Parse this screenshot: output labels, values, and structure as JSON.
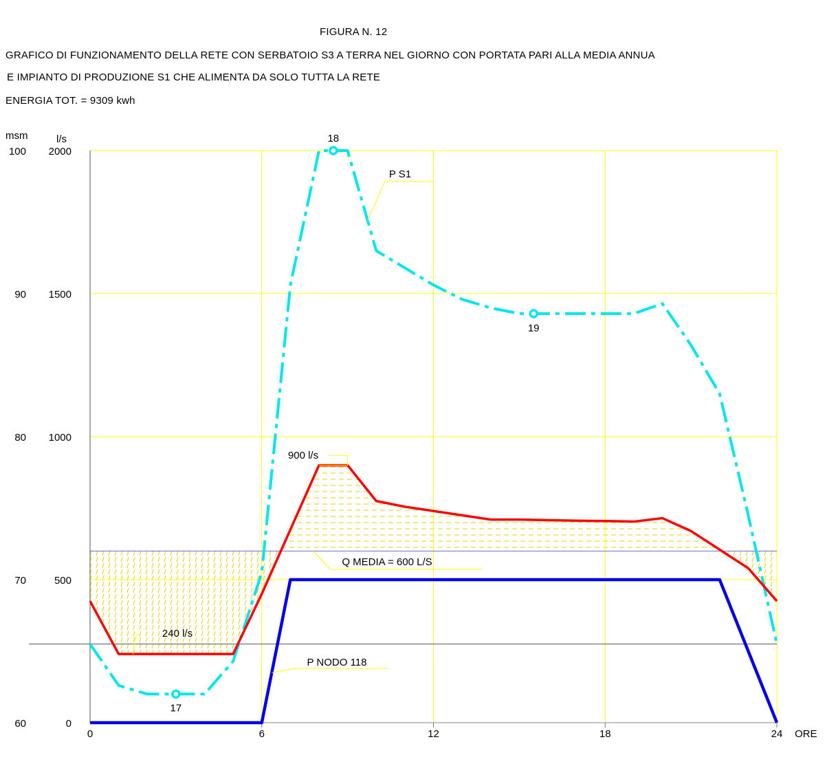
{
  "header": {
    "figure": "FIGURA N. 12",
    "line1": "GRAFICO DI FUNZIONAMENTO DELLA RETE CON SERBATOIO S3 A TERRA NEL GIORNO CON PORTATA PARI ALLA MEDIA ANNUA",
    "line2": "E IMPIANTO DI PRODUZIONE S1 CHE ALIMENTA DA SOLO TUTTA LA RETE",
    "energy": "ENERGIA TOT. = 9309 kwh"
  },
  "chart_data": {
    "type": "line",
    "x_label": "ORE",
    "x_range": [
      0,
      24
    ],
    "x_ticks": [
      0,
      6,
      12,
      18,
      24
    ],
    "x_tick_labels": [
      "0",
      "6",
      "12",
      "18",
      "24"
    ],
    "y_left_unit": "msm",
    "y_left_range": [
      60,
      100
    ],
    "y_left_ticks": [
      60,
      70,
      80,
      90,
      100
    ],
    "y_left_tick_labels": [
      "60",
      "70",
      "80",
      "90",
      "100"
    ],
    "y_right_unit": "l/s",
    "y_right_range": [
      0,
      2000
    ],
    "y_right_ticks": [
      0,
      500,
      1000,
      1500,
      2000
    ],
    "y_right_tick_labels": [
      "0",
      "500",
      "1000",
      "1500",
      "2000"
    ],
    "grid": true,
    "colors": {
      "grid": "#ffff00",
      "piezometric": "#00e5ee",
      "flow": "#ff0000",
      "pump": "#0000ee",
      "mean": "#6a6ad8",
      "hatch": "#e8d000"
    },
    "series": [
      {
        "key": "ps1",
        "name": "P S1",
        "units": "msm",
        "points": [
          [
            0,
            65.5
          ],
          [
            1,
            62.6
          ],
          [
            2,
            62.0
          ],
          [
            3,
            62.0
          ],
          [
            4,
            62.0
          ],
          [
            5,
            64.3
          ],
          [
            6,
            70.5
          ],
          [
            7,
            90.6
          ],
          [
            8,
            100
          ],
          [
            9,
            100
          ],
          [
            10,
            93.0
          ],
          [
            11,
            91.8
          ],
          [
            12,
            90.6
          ],
          [
            13,
            89.6
          ],
          [
            14,
            89.0
          ],
          [
            15,
            88.6
          ],
          [
            16,
            88.6
          ],
          [
            17,
            88.6
          ],
          [
            18,
            88.6
          ],
          [
            19,
            88.6
          ],
          [
            20,
            89.3
          ],
          [
            21,
            86.4
          ],
          [
            22,
            83.0
          ],
          [
            23,
            74.5
          ],
          [
            24,
            65.5
          ]
        ]
      },
      {
        "key": "flow",
        "name": "",
        "units": "l/s",
        "points": [
          [
            0,
            425
          ],
          [
            1,
            240
          ],
          [
            2,
            240
          ],
          [
            3,
            240
          ],
          [
            4,
            240
          ],
          [
            5,
            240
          ],
          [
            6,
            450
          ],
          [
            7,
            675
          ],
          [
            8,
            900
          ],
          [
            9,
            900
          ],
          [
            10,
            775
          ],
          [
            11,
            755
          ],
          [
            12,
            740
          ],
          [
            13,
            725
          ],
          [
            14,
            710
          ],
          [
            15,
            710
          ],
          [
            16,
            708
          ],
          [
            17,
            706
          ],
          [
            18,
            705
          ],
          [
            19,
            703
          ],
          [
            20,
            715
          ],
          [
            21,
            670
          ],
          [
            22,
            605
          ],
          [
            23,
            540
          ],
          [
            24,
            425
          ]
        ]
      },
      {
        "key": "pnodo",
        "name": "P NODO 118",
        "units": "l/s",
        "points": [
          [
            0,
            0
          ],
          [
            6,
            0
          ],
          [
            7,
            500
          ],
          [
            22,
            500
          ],
          [
            24,
            0
          ]
        ]
      }
    ],
    "mean_line": {
      "value": 600,
      "units": "l/s",
      "label": "Q MEDIA = 600 L/S"
    },
    "ref_line": {
      "value": 65.5,
      "units": "msm"
    },
    "markers": [
      {
        "label": "17",
        "x": 3,
        "y": 62.0,
        "units": "msm"
      },
      {
        "label": "18",
        "x": 8.5,
        "y": 100,
        "units": "msm"
      },
      {
        "label": "19",
        "x": 15.5,
        "y": 88.6,
        "units": "msm"
      }
    ],
    "annotations": [
      {
        "text": "P S1",
        "target": "ps1"
      },
      {
        "text": "900 l/s",
        "target": "flow_max"
      },
      {
        "text": "240 l/s",
        "target": "flow_min"
      },
      {
        "text": "P NODO 118",
        "target": "pnodo"
      }
    ]
  }
}
